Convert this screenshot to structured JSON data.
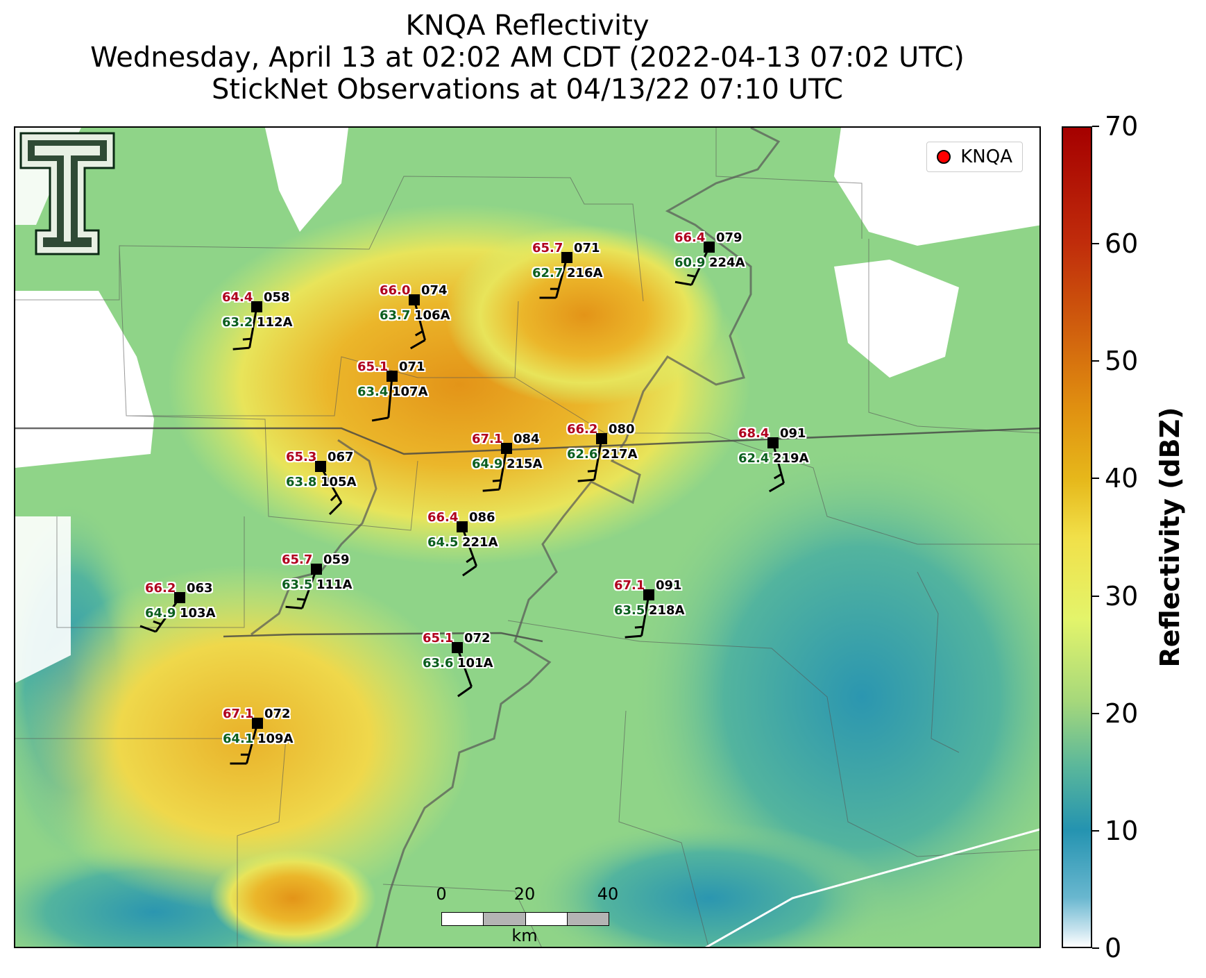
{
  "title": {
    "line1": "KNQA Reflectivity",
    "line2": "Wednesday, April 13 at 02:02 AM CDT (2022-04-13 07:02 UTC)",
    "line3": "StickNet Observations at 04/13/22 07:10 UTC"
  },
  "legend": {
    "label": "KNQA",
    "marker_color": "#ff0000"
  },
  "logo": {
    "name": "texas-tech-double-t-logo"
  },
  "scalebar": {
    "ticks": [
      "0",
      "20",
      "40"
    ],
    "unit": "km"
  },
  "colorbar": {
    "label": "Reflectivity (dBZ)",
    "ticks": [
      "0",
      "10",
      "20",
      "30",
      "40",
      "50",
      "60",
      "70"
    ],
    "min": 0,
    "max": 70
  },
  "stations": [
    {
      "id": "112A",
      "temp": "64.4",
      "dew": "63.2",
      "dir": "058",
      "wind_dir_deg": 190,
      "wind_kt": 15
    },
    {
      "id": "106A",
      "temp": "66.0",
      "dew": "63.7",
      "dir": "074",
      "wind_dir_deg": 165,
      "wind_kt": 15
    },
    {
      "id": "216A",
      "temp": "65.7",
      "dew": "62.7",
      "dir": "071",
      "wind_dir_deg": 195,
      "wind_kt": 15
    },
    {
      "id": "224A",
      "temp": "66.4",
      "dew": "60.9",
      "dir": "079",
      "wind_dir_deg": 205,
      "wind_kt": 15
    },
    {
      "id": "107A",
      "temp": "65.1",
      "dew": "63.4",
      "dir": "071",
      "wind_dir_deg": 185,
      "wind_kt": 10
    },
    {
      "id": "215A",
      "temp": "67.1",
      "dew": "64.9",
      "dir": "084",
      "wind_dir_deg": 190,
      "wind_kt": 15
    },
    {
      "id": "217A",
      "temp": "66.2",
      "dew": "62.6",
      "dir": "080",
      "wind_dir_deg": 190,
      "wind_kt": 15
    },
    {
      "id": "219A",
      "temp": "68.4",
      "dew": "62.4",
      "dir": "091",
      "wind_dir_deg": 165,
      "wind_kt": 15
    },
    {
      "id": "105A",
      "temp": "65.3",
      "dew": "63.8",
      "dir": "067",
      "wind_dir_deg": 150,
      "wind_kt": 15
    },
    {
      "id": "221A",
      "temp": "66.4",
      "dew": "64.5",
      "dir": "086",
      "wind_dir_deg": 160,
      "wind_kt": 15
    },
    {
      "id": "111A",
      "temp": "65.7",
      "dew": "63.5",
      "dir": "059",
      "wind_dir_deg": 200,
      "wind_kt": 15
    },
    {
      "id": "103A",
      "temp": "66.2",
      "dew": "64.9",
      "dir": "063",
      "wind_dir_deg": 215,
      "wind_kt": 15
    },
    {
      "id": "218A",
      "temp": "67.1",
      "dew": "63.5",
      "dir": "091",
      "wind_dir_deg": 190,
      "wind_kt": 15
    },
    {
      "id": "101A",
      "temp": "65.1",
      "dew": "63.6",
      "dir": "072",
      "wind_dir_deg": 160,
      "wind_kt": 10
    },
    {
      "id": "109A",
      "temp": "67.1",
      "dew": "64.1",
      "dir": "072",
      "wind_dir_deg": 195,
      "wind_kt": 15
    }
  ]
}
